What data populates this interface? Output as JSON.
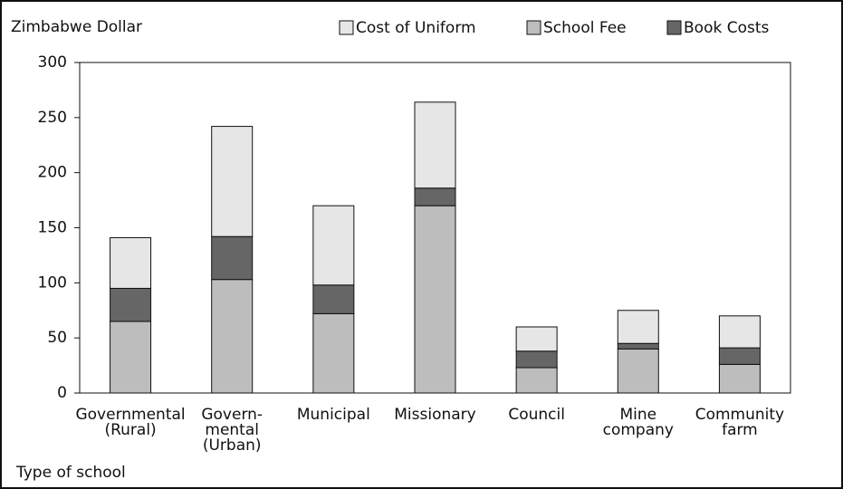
{
  "chart_data": {
    "type": "stacked-bar",
    "y_label": "Zimbabwe Dollar",
    "x_label": "Type of school",
    "categories": [
      "Governmental\n(Rural)",
      "Govern-\nmental\n(Urban)",
      "Municipal",
      "Missionary",
      "Council",
      "Mine\ncompany",
      "Community\nfarm"
    ],
    "series": [
      {
        "name": "School Fee",
        "color": "#bdbdbd",
        "values": [
          65,
          103,
          72,
          170,
          23,
          40,
          26
        ]
      },
      {
        "name": "Book Costs",
        "color": "#666666",
        "values": [
          30,
          39,
          26,
          16,
          15,
          5,
          15
        ]
      },
      {
        "name": "Cost of Uniform",
        "color": "#e6e6e6",
        "values": [
          46,
          100,
          72,
          78,
          22,
          30,
          29
        ]
      }
    ],
    "legend_order": [
      2,
      0,
      1
    ],
    "ylim": [
      0,
      300
    ],
    "yticks": [
      0,
      50,
      100,
      150,
      200,
      250,
      300
    ]
  }
}
